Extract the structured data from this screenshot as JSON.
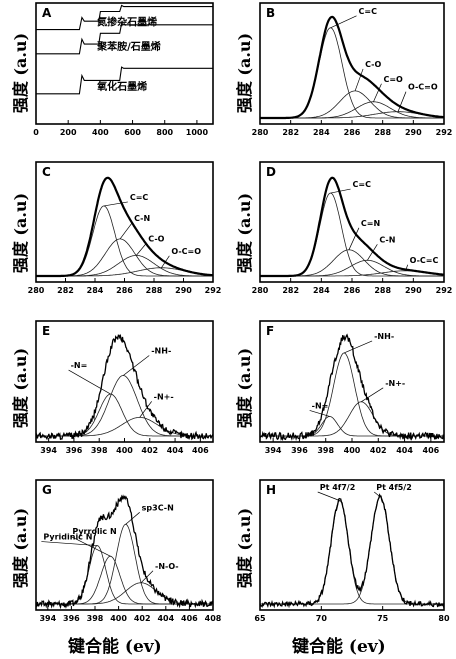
{
  "figure": {
    "y_axis_label": "强度 (a.u)",
    "x_axis_label": "键合能 (ev)"
  },
  "chart_data": [
    {
      "id": "A",
      "type": "line",
      "xlim": [
        0,
        1100
      ],
      "ylim": [
        0,
        1
      ],
      "xticks": [
        0,
        200,
        400,
        600,
        800,
        1000
      ],
      "series": [
        {
          "name": "氮掺杂石墨烯",
          "x": [
            0,
            270,
            285,
            300,
            390,
            400,
            520,
            532,
            545,
            1100
          ],
          "y": [
            0.78,
            0.78,
            0.88,
            0.85,
            0.85,
            0.93,
            0.93,
            0.98,
            0.97,
            0.97
          ]
        },
        {
          "name": "聚苯胺/石墨烯",
          "x": [
            0,
            270,
            285,
            300,
            390,
            400,
            520,
            532,
            545,
            1100
          ],
          "y": [
            0.58,
            0.58,
            0.7,
            0.66,
            0.66,
            0.75,
            0.75,
            0.83,
            0.82,
            0.82
          ]
        },
        {
          "name": "氧化石墨烯",
          "x": [
            0,
            270,
            285,
            300,
            520,
            532,
            545,
            1100
          ],
          "y": [
            0.25,
            0.25,
            0.4,
            0.36,
            0.36,
            0.47,
            0.46,
            0.46
          ]
        }
      ]
    },
    {
      "id": "B",
      "type": "line",
      "xlim": [
        280,
        292
      ],
      "xticks": [
        280,
        282,
        284,
        286,
        288,
        290,
        292
      ],
      "total_scale": 1.02,
      "peaks": [
        {
          "label": "C=C",
          "center": 284.6,
          "height": 1.0,
          "width": 0.75
        },
        {
          "label": "C-O",
          "center": 286.2,
          "height": 0.3,
          "width": 1.0
        },
        {
          "label": "C=O",
          "center": 287.4,
          "height": 0.18,
          "width": 1.1
        },
        {
          "label": "O-C=O",
          "center": 289.0,
          "height": 0.07,
          "width": 1.5
        }
      ]
    },
    {
      "id": "C",
      "type": "line",
      "xlim": [
        280,
        292
      ],
      "xticks": [
        280,
        282,
        284,
        286,
        288,
        290,
        292
      ],
      "total_scale": 1.0,
      "peaks": [
        {
          "label": "C=C",
          "center": 284.6,
          "height": 0.85,
          "width": 0.75
        },
        {
          "label": "C-N",
          "center": 285.7,
          "height": 0.45,
          "width": 1.0
        },
        {
          "label": "C-O",
          "center": 286.8,
          "height": 0.25,
          "width": 1.2
        },
        {
          "label": "O-C=O",
          "center": 288.5,
          "height": 0.1,
          "width": 1.6
        }
      ]
    },
    {
      "id": "D",
      "type": "line",
      "xlim": [
        280,
        292
      ],
      "xticks": [
        280,
        282,
        284,
        286,
        288,
        290,
        292
      ],
      "total_scale": 1.0,
      "peaks": [
        {
          "label": "C=C",
          "center": 284.6,
          "height": 0.95,
          "width": 0.7
        },
        {
          "label": "C=N",
          "center": 285.8,
          "height": 0.3,
          "width": 1.0
        },
        {
          "label": "C-N",
          "center": 287.0,
          "height": 0.18,
          "width": 1.1
        },
        {
          "label": "O-C=C",
          "center": 289.5,
          "height": 0.06,
          "width": 1.5
        }
      ]
    },
    {
      "id": "E",
      "type": "line",
      "xlim": [
        393,
        407
      ],
      "xticks": [
        394,
        396,
        398,
        400,
        402,
        404,
        406
      ],
      "total_scale": 1.0,
      "noise": 0.035,
      "peaks": [
        {
          "label": "-N=",
          "center": 398.9,
          "height": 0.45,
          "width": 0.9
        },
        {
          "label": "-NH-",
          "center": 399.9,
          "height": 0.65,
          "width": 1.1
        },
        {
          "label": "-N+-",
          "center": 401.2,
          "height": 0.2,
          "width": 1.4
        }
      ]
    },
    {
      "id": "F",
      "type": "line",
      "xlim": [
        393,
        407
      ],
      "xticks": [
        394,
        396,
        398,
        400,
        402,
        404,
        406
      ],
      "total_scale": 1.0,
      "noise": 0.035,
      "peaks": [
        {
          "label": "-N=",
          "center": 398.3,
          "height": 0.2,
          "width": 0.6
        },
        {
          "label": "-NH-",
          "center": 399.4,
          "height": 0.85,
          "width": 0.8
        },
        {
          "label": "-N+-",
          "center": 400.7,
          "height": 0.35,
          "width": 0.9
        }
      ]
    },
    {
      "id": "G",
      "type": "line",
      "xlim": [
        393,
        408
      ],
      "xticks": [
        394,
        396,
        398,
        400,
        402,
        404,
        406,
        408
      ],
      "total_scale": 1.0,
      "noise": 0.03,
      "peaks": [
        {
          "label": "Pyridinic N",
          "center": 398.2,
          "height": 0.55,
          "width": 0.7
        },
        {
          "label": "Pyrrolic N",
          "center": 399.3,
          "height": 0.45,
          "width": 0.8
        },
        {
          "label": "sp3C-N",
          "center": 400.6,
          "height": 0.75,
          "width": 0.8
        },
        {
          "label": "-N-O-",
          "center": 401.9,
          "height": 0.2,
          "width": 1.3
        }
      ]
    },
    {
      "id": "H",
      "type": "line",
      "xlim": [
        65,
        80
      ],
      "xticks": [
        65,
        70,
        75,
        80
      ],
      "total_scale": 1.0,
      "noise": 0.02,
      "peaks": [
        {
          "label": "Pt 4f7/2",
          "center": 71.5,
          "height": 0.82,
          "width": 0.7
        },
        {
          "label": "Pt 4f5/2",
          "center": 74.8,
          "height": 0.85,
          "width": 0.75
        }
      ]
    }
  ]
}
